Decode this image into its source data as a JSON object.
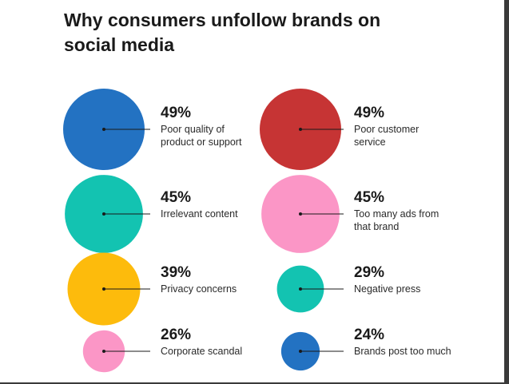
{
  "title_lines": [
    "Why consumers unfollow brands on",
    "social media"
  ],
  "chart_data": {
    "type": "bubble",
    "title": "Why consumers unfollow brands on social media",
    "unit": "%",
    "items": [
      {
        "label_lines": [
          "Poor quality of",
          "product or support"
        ],
        "value": 49,
        "color": "#2372c2"
      },
      {
        "label_lines": [
          "Poor customer",
          "service"
        ],
        "value": 49,
        "color": "#c63434"
      },
      {
        "label_lines": [
          "Irrelevant content"
        ],
        "value": 45,
        "color": "#13c3b1"
      },
      {
        "label_lines": [
          "Too many ads from",
          "that brand"
        ],
        "value": 45,
        "color": "#fb96c6"
      },
      {
        "label_lines": [
          "Privacy concerns"
        ],
        "value": 39,
        "color": "#fdbb0c"
      },
      {
        "label_lines": [
          "Negative press"
        ],
        "value": 29,
        "color": "#13c3b1"
      },
      {
        "label_lines": [
          "Corporate scandal"
        ],
        "value": 26,
        "color": "#fb96c6"
      },
      {
        "label_lines": [
          "Brands post too much"
        ],
        "value": 24,
        "color": "#2372c2"
      }
    ]
  }
}
